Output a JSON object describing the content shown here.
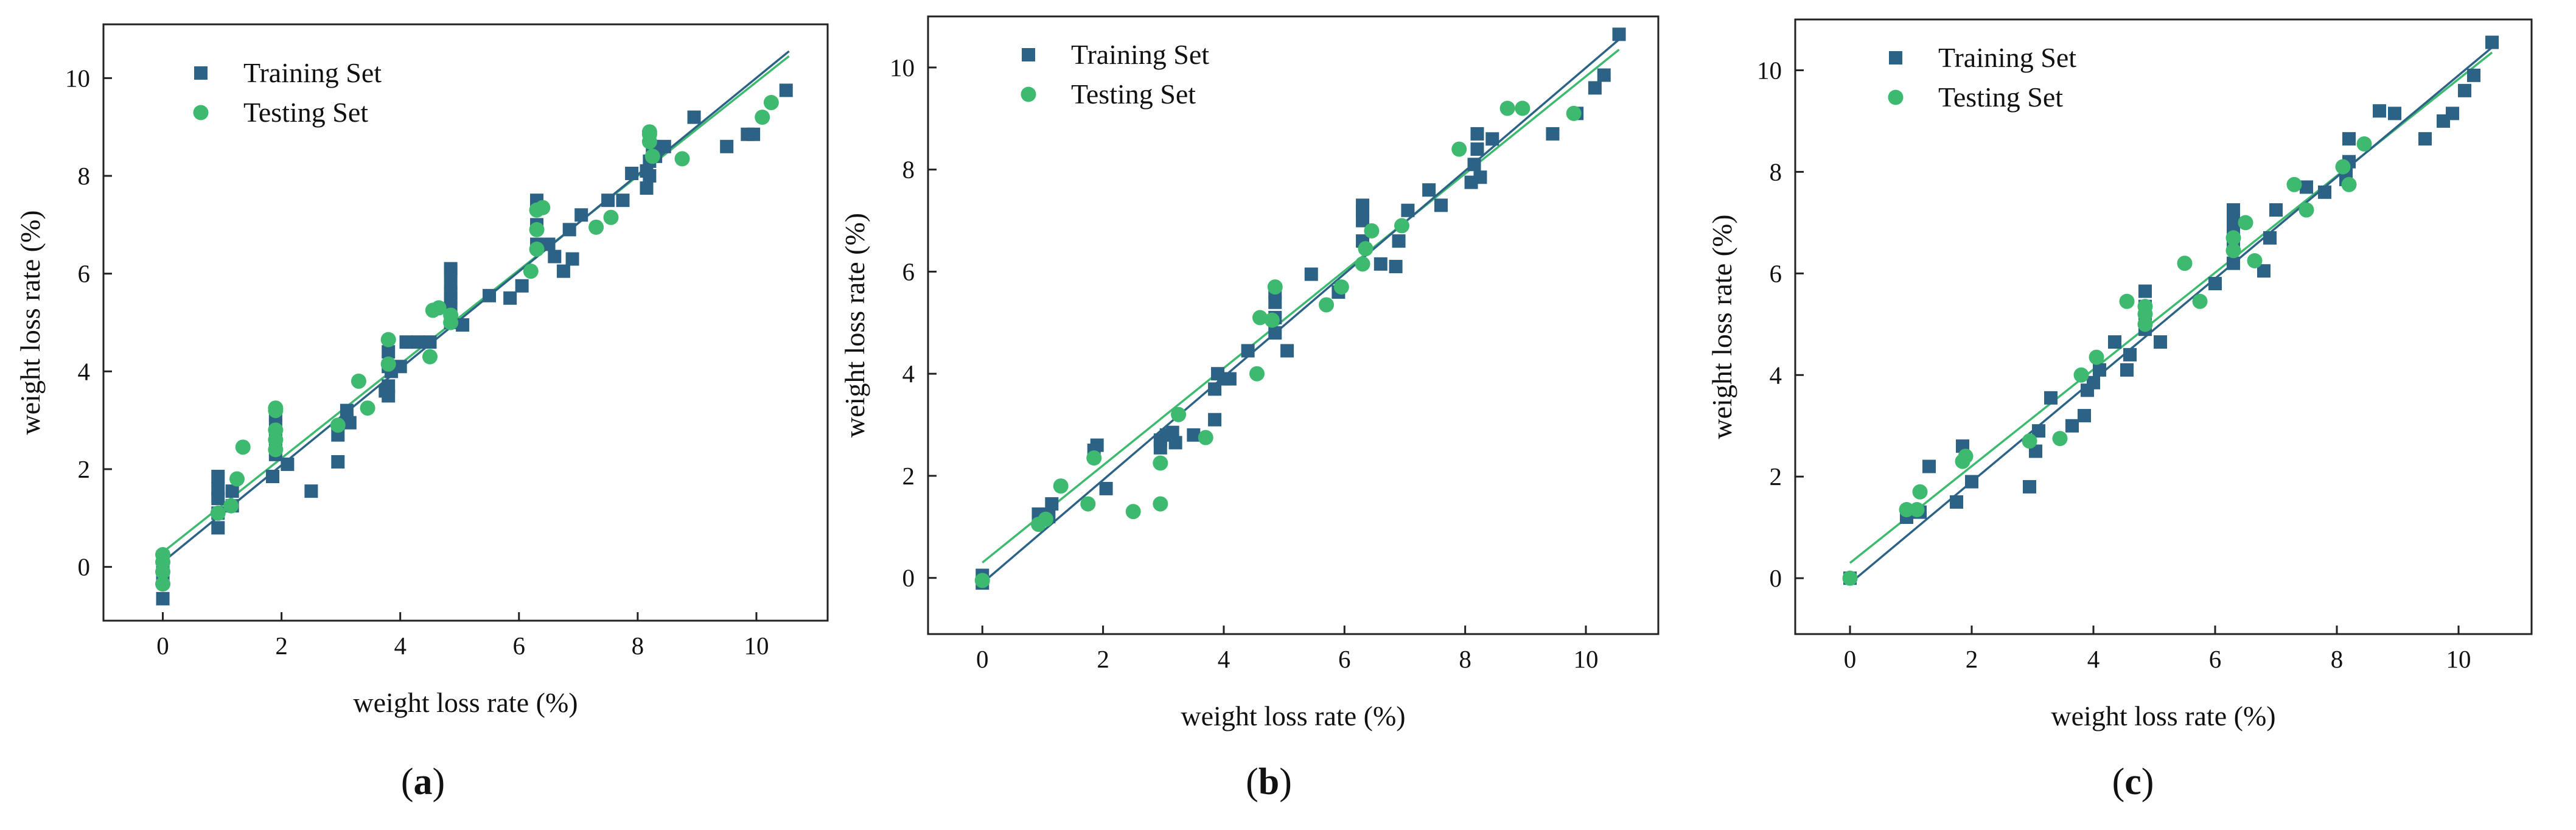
{
  "colors": {
    "train": "#2c6286",
    "test": "#3dba6f"
  },
  "chart_data": [
    {
      "type": "scatter",
      "panel_label": "a",
      "xlabel": "weight loss rate (%)",
      "ylabel": "weight loss rate (%)",
      "xlim": [
        -1,
        11.2
      ],
      "ylim": [
        -1.1,
        11.1
      ],
      "xticks": [
        0,
        2,
        4,
        6,
        8,
        10
      ],
      "yticks": [
        0,
        2,
        4,
        6,
        8,
        10
      ],
      "legend": [
        "Training Set",
        "Testing Set"
      ],
      "fit_lines": {
        "train": [
          0.1,
          10.55
        ],
        "test": [
          0.3,
          10.45
        ]
      },
      "series": [
        {
          "name": "Training Set",
          "marker": "square",
          "x": [
            0,
            0,
            0,
            0,
            0.93,
            0.93,
            0.93,
            0.93,
            0.93,
            1.17,
            1.17,
            1.85,
            1.9,
            1.9,
            1.9,
            1.9,
            2.1,
            2.5,
            2.95,
            2.95,
            3.1,
            3.1,
            3.15,
            3.75,
            3.8,
            3.8,
            3.8,
            3.8,
            3.85,
            4.0,
            4.1,
            4.3,
            4.5,
            4.85,
            4.85,
            4.85,
            4.85,
            4.85,
            4.85,
            4.85,
            5.05,
            5.5,
            5.85,
            6.05,
            6.3,
            6.3,
            6.3,
            6.3,
            6.5,
            6.6,
            6.75,
            6.85,
            6.9,
            7.05,
            7.5,
            7.75,
            7.9,
            8.15,
            8.15,
            8.2,
            8.2,
            8.25,
            8.3,
            8.45,
            8.95,
            9.5,
            9.85,
            9.95,
            10.5
          ],
          "y": [
            -0.65,
            -0.15,
            0.1,
            0.2,
            0.8,
            1.1,
            1.4,
            1.6,
            1.85,
            1.25,
            1.55,
            1.85,
            2.3,
            2.6,
            2.9,
            3.1,
            2.1,
            1.55,
            2.15,
            2.7,
            3.0,
            3.2,
            2.95,
            3.6,
            3.5,
            3.7,
            4.1,
            4.4,
            4.0,
            4.1,
            4.6,
            4.6,
            4.6,
            5.0,
            5.3,
            5.5,
            5.6,
            5.8,
            6.05,
            6.1,
            4.95,
            5.55,
            5.5,
            5.75,
            6.6,
            7.0,
            7.4,
            7.5,
            6.6,
            6.35,
            6.05,
            6.9,
            6.3,
            7.2,
            7.5,
            7.5,
            8.05,
            7.75,
            8.1,
            8.0,
            8.3,
            8.6,
            8.4,
            8.6,
            9.2,
            8.6,
            8.85,
            8.85,
            9.75
          ]
        },
        {
          "name": "Testing Set",
          "marker": "circle",
          "x": [
            0,
            0,
            0,
            0,
            0.93,
            1.15,
            1.25,
            1.35,
            1.9,
            1.9,
            1.9,
            1.9,
            1.9,
            2.95,
            3.3,
            3.45,
            3.8,
            3.8,
            4.5,
            4.55,
            4.65,
            4.85,
            4.85,
            6.2,
            6.3,
            6.3,
            6.3,
            6.4,
            7.3,
            7.55,
            8.2,
            8.2,
            8.2,
            8.25,
            8.75,
            10.1,
            10.25
          ],
          "y": [
            -0.35,
            -0.1,
            0.1,
            0.25,
            1.1,
            1.25,
            1.8,
            2.45,
            2.4,
            2.6,
            2.8,
            3.2,
            3.25,
            2.9,
            3.8,
            3.25,
            4.15,
            4.65,
            4.3,
            5.25,
            5.3,
            5.0,
            5.15,
            6.05,
            6.5,
            6.9,
            7.3,
            7.35,
            6.95,
            7.15,
            8.7,
            8.85,
            8.9,
            8.4,
            8.35,
            9.2,
            9.5
          ]
        }
      ]
    },
    {
      "type": "scatter",
      "panel_label": "b",
      "xlabel": "weight loss rate (%)",
      "ylabel": "weight loss rate (%)",
      "xlim": [
        -0.9,
        11.2
      ],
      "ylim": [
        -1.1,
        11.0
      ],
      "xticks": [
        0,
        2,
        4,
        6,
        8,
        10
      ],
      "yticks": [
        0,
        2,
        4,
        6,
        8,
        10
      ],
      "legend": [
        "Training Set",
        "Testing Set"
      ],
      "fit_lines": {
        "train": [
          -0.1,
          10.55
        ],
        "test": [
          0.3,
          10.35
        ]
      },
      "series": [
        {
          "name": "Training Set",
          "marker": "square",
          "x": [
            0,
            0,
            0.93,
            1.1,
            1.15,
            1.85,
            1.9,
            2.05,
            2.95,
            2.95,
            3.05,
            3.15,
            3.2,
            3.5,
            3.85,
            3.85,
            3.9,
            4.0,
            4.1,
            4.4,
            4.85,
            4.85,
            4.85,
            4.85,
            5.05,
            5.45,
            5.9,
            6.3,
            6.3,
            6.3,
            6.3,
            6.6,
            6.85,
            6.9,
            7.05,
            7.4,
            7.6,
            8.1,
            8.15,
            8.2,
            8.2,
            8.25,
            8.45,
            9.45,
            9.85,
            10.15,
            10.3,
            10.55
          ],
          "y": [
            -0.1,
            0.05,
            1.25,
            1.2,
            1.45,
            2.5,
            2.6,
            1.75,
            2.55,
            2.7,
            2.8,
            2.85,
            2.65,
            2.8,
            3.1,
            3.7,
            4.0,
            3.9,
            3.9,
            4.45,
            4.8,
            5.1,
            5.4,
            5.6,
            4.45,
            5.95,
            5.6,
            6.6,
            7.0,
            7.2,
            7.3,
            6.15,
            6.1,
            6.6,
            7.2,
            7.6,
            7.3,
            7.75,
            8.1,
            8.4,
            8.7,
            7.85,
            8.6,
            8.7,
            9.1,
            9.6,
            9.85,
            10.65
          ]
        },
        {
          "name": "Testing Set",
          "marker": "circle",
          "x": [
            0,
            0.93,
            1.05,
            1.3,
            1.75,
            1.85,
            2.5,
            2.95,
            2.95,
            3.25,
            3.7,
            4.55,
            4.6,
            4.8,
            4.85,
            5.7,
            5.95,
            6.3,
            6.35,
            6.45,
            6.95,
            7.9,
            8.7,
            8.95,
            9.8
          ],
          "y": [
            -0.05,
            1.05,
            1.15,
            1.8,
            1.45,
            2.35,
            1.3,
            1.45,
            2.25,
            3.2,
            2.75,
            4.0,
            5.1,
            5.05,
            5.7,
            5.35,
            5.7,
            6.15,
            6.45,
            6.8,
            6.9,
            8.4,
            9.2,
            9.2,
            9.1
          ]
        }
      ]
    },
    {
      "type": "scatter",
      "panel_label": "c",
      "xlabel": "weight loss rate (%)",
      "ylabel": "weight loss rate (%)",
      "xlim": [
        -0.9,
        11.2
      ],
      "ylim": [
        -1.1,
        11.0
      ],
      "xticks": [
        0,
        2,
        4,
        6,
        8,
        10
      ],
      "yticks": [
        0,
        2,
        4,
        6,
        8,
        10
      ],
      "legend": [
        "Training Set",
        "Testing Set"
      ],
      "fit_lines": {
        "train": [
          -0.1,
          10.45
        ],
        "test": [
          0.3,
          10.35
        ]
      },
      "series": [
        {
          "name": "Training Set",
          "marker": "square",
          "x": [
            0,
            0.93,
            1.15,
            1.3,
            1.75,
            1.85,
            2.0,
            2.95,
            3.05,
            3.1,
            3.3,
            3.65,
            3.85,
            3.9,
            4.0,
            4.1,
            4.35,
            4.55,
            4.6,
            4.85,
            4.85,
            4.85,
            4.85,
            5.1,
            6.0,
            6.3,
            6.3,
            6.3,
            6.3,
            6.3,
            6.8,
            6.9,
            7.0,
            7.5,
            7.8,
            8.15,
            8.15,
            8.2,
            8.2,
            8.7,
            8.95,
            9.45,
            9.75,
            9.9,
            10.1,
            10.25,
            10.55
          ],
          "y": [
            0,
            1.2,
            1.3,
            2.2,
            1.5,
            2.6,
            1.9,
            1.8,
            2.5,
            2.9,
            3.55,
            3.0,
            3.2,
            3.7,
            3.85,
            4.1,
            4.65,
            4.1,
            4.4,
            4.9,
            5.1,
            5.35,
            5.65,
            4.65,
            5.8,
            6.2,
            6.6,
            6.9,
            7.1,
            7.25,
            6.05,
            6.7,
            7.25,
            7.7,
            7.6,
            7.85,
            8.1,
            8.2,
            8.65,
            9.2,
            9.15,
            8.65,
            9.0,
            9.15,
            9.6,
            9.9,
            10.55
          ]
        },
        {
          "name": "Testing Set",
          "marker": "circle",
          "x": [
            0,
            0.93,
            1.1,
            1.15,
            1.85,
            1.9,
            2.95,
            3.45,
            3.8,
            4.05,
            4.55,
            4.85,
            4.85,
            4.85,
            5.5,
            5.75,
            6.3,
            6.3,
            6.5,
            6.65,
            7.3,
            7.5,
            8.1,
            8.2,
            8.45
          ],
          "y": [
            0,
            1.35,
            1.35,
            1.7,
            2.3,
            2.4,
            2.7,
            2.75,
            4.0,
            4.35,
            5.45,
            5.0,
            5.2,
            5.35,
            6.2,
            5.45,
            6.45,
            6.7,
            7.0,
            6.25,
            7.75,
            7.25,
            8.1,
            7.75,
            8.55
          ]
        }
      ]
    }
  ]
}
